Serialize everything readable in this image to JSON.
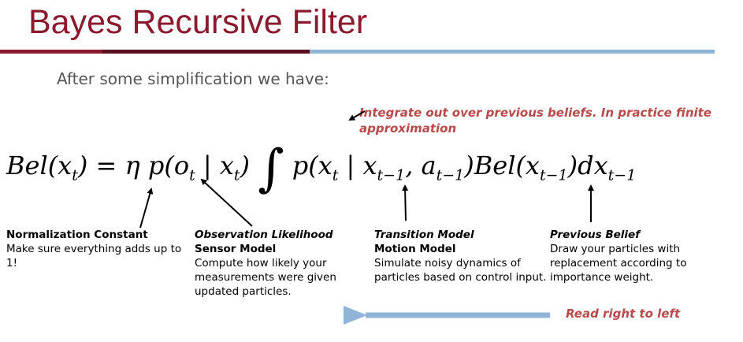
{
  "slide": {
    "title": "Bayes Recursive Filter",
    "subtitle": "After some simplification we have:",
    "integration_note": "Integrate out over previous beliefs. In practice finite approximation",
    "read_direction_note": "Read right to left"
  },
  "formula": {
    "lhs": "Bel(x",
    "lhs_sub": "t",
    "eq": ") = η p(o",
    "o_sub": "t",
    "mid1": " | x",
    "x_sub1": "t",
    "mid2": ") ",
    "integral": "∫",
    "trans": " p(x",
    "x_sub2": "t",
    "bar": " | x",
    "x_sub3": "t−1",
    "comma": ", a",
    "a_sub": "t−1",
    "bel": ")Bel(x",
    "x_sub4": "t−1",
    "dx": ")dx",
    "dx_sub": "t−1"
  },
  "annotations": [
    {
      "heading": "Normalization Constant",
      "heading2": "",
      "body": "Make sure everything adds up to 1!"
    },
    {
      "heading": "Observation Likelihood",
      "heading2": "Sensor Model",
      "body": "Compute how likely your measurements were given updated particles."
    },
    {
      "heading": "Transition Model",
      "heading2": "Motion Model",
      "body": "Simulate noisy dynamics of particles based on control input."
    },
    {
      "heading": "Previous Belief",
      "heading2": "",
      "body": "Draw your particles with replacement according to importance weight."
    }
  ],
  "colors": {
    "title": "#8b1a2e",
    "accent_red": "#b94a4a",
    "accent_blue": "#8fb4d6"
  }
}
